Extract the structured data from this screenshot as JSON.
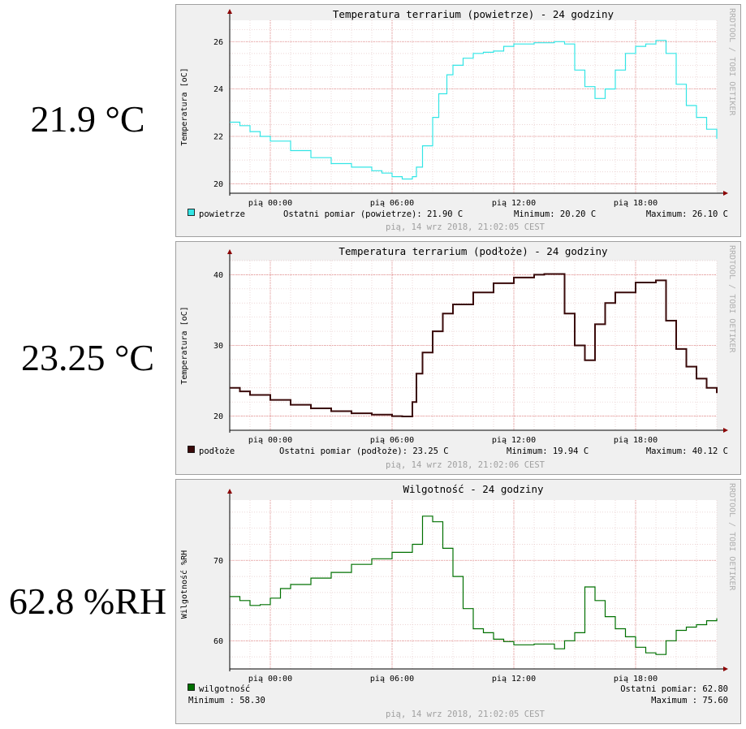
{
  "readouts": {
    "air": "21.9 °C",
    "substrate": "23.25 °C",
    "humidity": "62.8 %RH"
  },
  "chart_data": [
    {
      "type": "line",
      "title": "Temperatura terrarium (powietrze) - 24 godziny",
      "ylabel": "Temperatura [oC]",
      "watermark": "RRDTOOL / TOBI OETIKER",
      "xticks": [
        "pią 00:00",
        "pią 06:00",
        "pią 12:00",
        "pią 18:00"
      ],
      "xlim_hours": [
        -2,
        22
      ],
      "yticks": [
        20,
        22,
        24,
        26
      ],
      "ylim": [
        19.6,
        26.9
      ],
      "series": [
        {
          "name": "powietrze",
          "color": "#33e5e5",
          "x_hours": [
            -2,
            -1.5,
            -1,
            -0.5,
            0,
            1,
            2,
            3,
            4,
            5,
            5.5,
            6,
            6.5,
            7,
            7.2,
            7.5,
            8,
            8.3,
            8.7,
            9,
            9.5,
            10,
            10.5,
            11,
            11.5,
            12,
            13,
            14,
            14.5,
            15,
            15.5,
            16,
            16.5,
            17,
            17.5,
            18,
            18.5,
            19,
            19.5,
            20,
            20.5,
            21,
            21.5,
            22
          ],
          "values": [
            22.6,
            22.45,
            22.2,
            22.0,
            21.8,
            21.4,
            21.1,
            20.85,
            20.7,
            20.55,
            20.45,
            20.3,
            20.2,
            20.3,
            20.7,
            21.6,
            22.8,
            23.8,
            24.6,
            25.0,
            25.3,
            25.5,
            25.55,
            25.6,
            25.8,
            25.9,
            25.95,
            26.0,
            25.9,
            24.8,
            24.1,
            23.6,
            24.0,
            24.8,
            25.5,
            25.8,
            25.9,
            26.05,
            25.5,
            24.2,
            23.3,
            22.8,
            22.3,
            21.9
          ]
        }
      ],
      "legend": {
        "label": "powietrze",
        "last": "Ostatni pomiar (powietrze): 21.90 C",
        "min": "Minimum: 20.20 C",
        "max": "Maximum: 26.10 C",
        "timestamp": "pią, 14 wrz 2018, 21:02:05 CEST"
      }
    },
    {
      "type": "line",
      "title": "Temperatura terrarium (podłoże) - 24 godziny",
      "ylabel": "Temperatura [oC]",
      "watermark": "RRDTOOL / TOBI OETIKER",
      "xticks": [
        "pią 00:00",
        "pią 06:00",
        "pią 12:00",
        "pią 18:00"
      ],
      "xlim_hours": [
        -2,
        22
      ],
      "yticks": [
        20,
        30,
        40
      ],
      "ylim": [
        18,
        42
      ],
      "series": [
        {
          "name": "podłoże",
          "color": "#3a0a0a",
          "x_hours": [
            -2,
            -1.5,
            -1,
            0,
            1,
            2,
            3,
            4,
            5,
            6,
            6.5,
            7,
            7.2,
            7.5,
            8,
            8.5,
            9,
            10,
            11,
            12,
            13,
            13.5,
            14,
            14.5,
            15,
            15.5,
            16,
            16.5,
            17,
            18,
            19,
            19.5,
            20,
            20.5,
            21,
            21.5,
            22
          ],
          "values": [
            24.0,
            23.5,
            23.0,
            22.3,
            21.6,
            21.1,
            20.7,
            20.4,
            20.2,
            20.0,
            19.95,
            22.0,
            26.0,
            29.0,
            32.0,
            34.5,
            35.8,
            37.5,
            38.8,
            39.6,
            40.0,
            40.1,
            40.1,
            34.5,
            30.0,
            27.9,
            33.0,
            36.0,
            37.5,
            38.9,
            39.2,
            33.5,
            29.5,
            27.0,
            25.3,
            24.0,
            23.25
          ]
        }
      ],
      "legend": {
        "label": "podłoże",
        "last": "Ostatni pomiar (podłoże): 23.25 C",
        "min": "Minimum: 19.94 C",
        "max": "Maximum: 40.12 C",
        "timestamp": "pią, 14 wrz 2018, 21:02:06 CEST"
      }
    },
    {
      "type": "line",
      "title": "Wilgotność - 24 godziny",
      "ylabel": "Wilgotność %RH",
      "watermark": "RRDTOOL / TOBI OETIKER",
      "xticks": [
        "pią 00:00",
        "pią 06:00",
        "pią 12:00",
        "pią 18:00"
      ],
      "xlim_hours": [
        -2,
        22
      ],
      "yticks": [
        60,
        70
      ],
      "ylim": [
        56.5,
        77.5
      ],
      "series": [
        {
          "name": "wilgotność",
          "color": "#007000",
          "x_hours": [
            -2,
            -1.5,
            -1,
            -0.5,
            0,
            0.5,
            1,
            2,
            3,
            4,
            5,
            6,
            7,
            7.5,
            8,
            8.5,
            9,
            9.5,
            10,
            10.5,
            11,
            11.5,
            12,
            13,
            14,
            14.5,
            15,
            15.5,
            16,
            16.5,
            17,
            17.5,
            18,
            18.5,
            19,
            19.5,
            20,
            20.5,
            21,
            21.5,
            22
          ],
          "values": [
            65.5,
            65.0,
            64.4,
            64.5,
            65.3,
            66.5,
            67.0,
            67.8,
            68.5,
            69.5,
            70.2,
            71.0,
            72.0,
            75.5,
            74.8,
            71.5,
            68.0,
            64.0,
            61.5,
            61.0,
            60.2,
            59.9,
            59.5,
            59.6,
            59.0,
            60.0,
            61.0,
            66.7,
            65.0,
            63.0,
            61.5,
            60.5,
            59.2,
            58.5,
            58.3,
            60.0,
            61.3,
            61.7,
            62.0,
            62.5,
            62.8
          ]
        }
      ],
      "legend": {
        "label": "wilgotność",
        "last": "Ostatni pomiar: 62.80",
        "min": "Minimum : 58.30",
        "max": "Maximum : 75.60",
        "timestamp": "pią, 14 wrz 2018, 21:02:05 CEST"
      }
    }
  ]
}
